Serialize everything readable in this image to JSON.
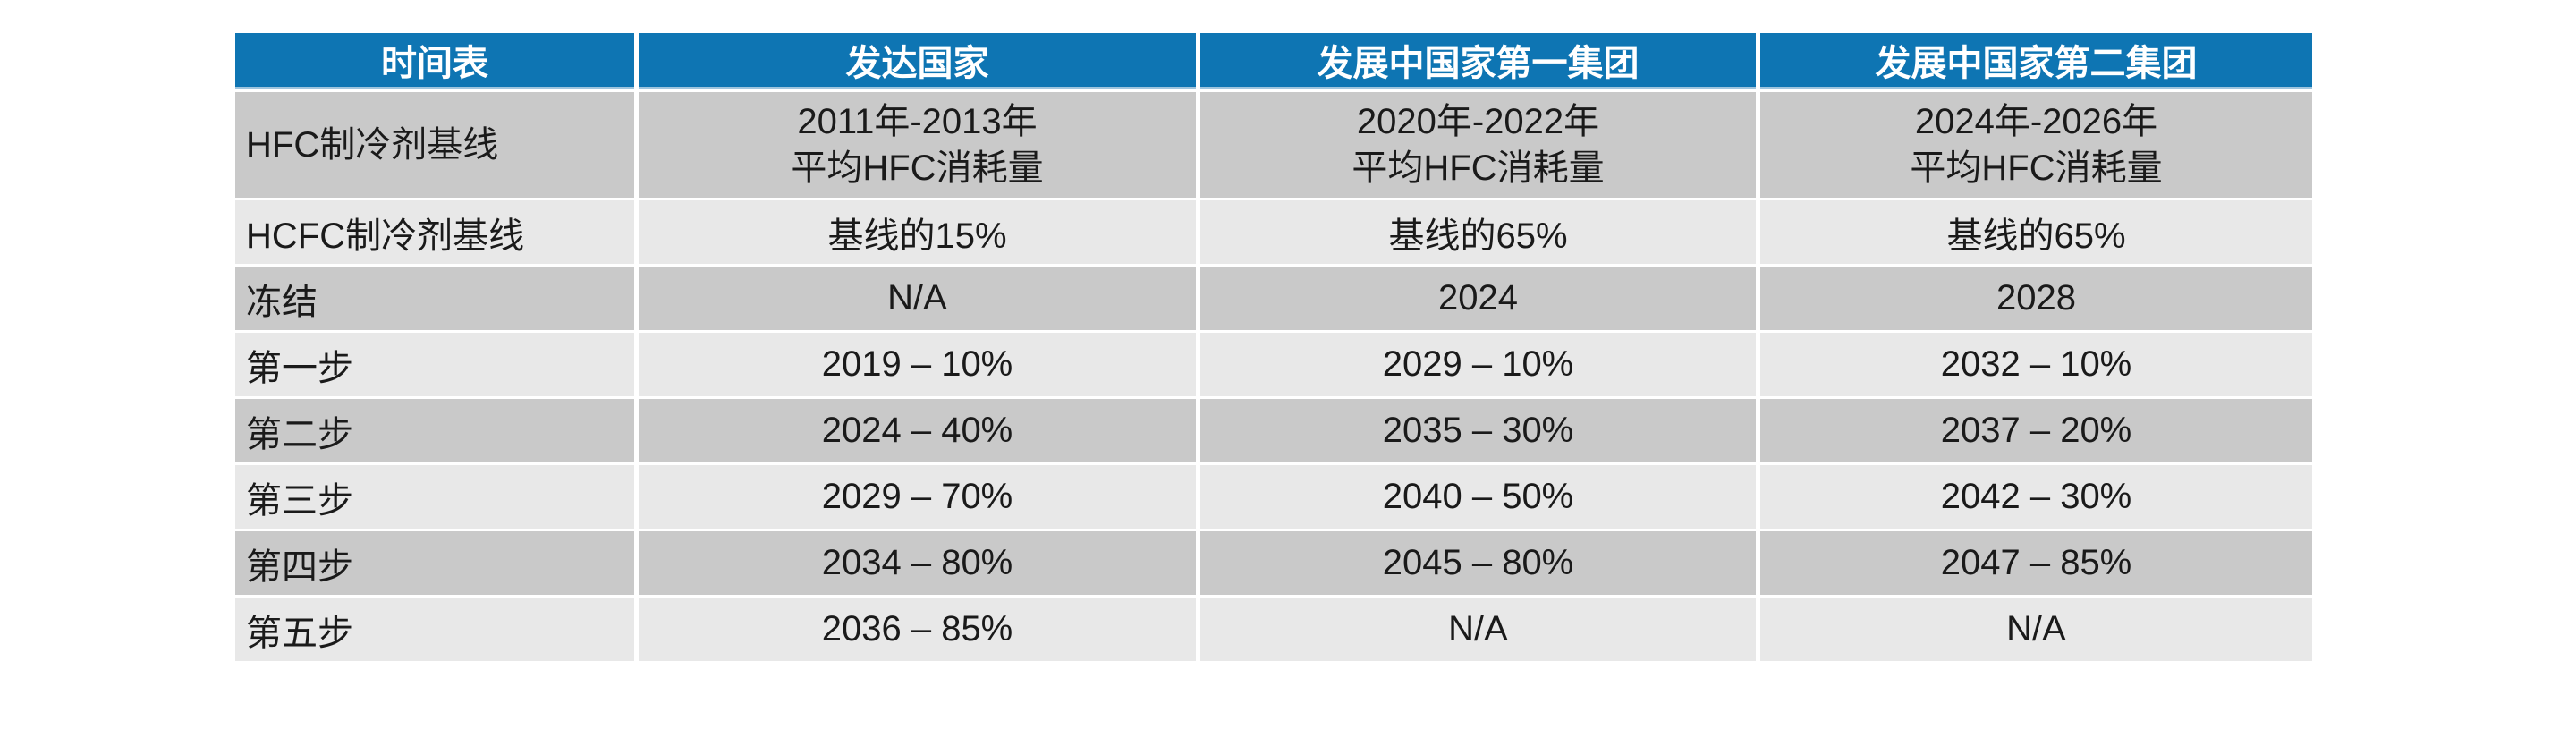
{
  "table": {
    "title_column_header": "时间表",
    "columns": [
      "时间表",
      "发达国家",
      "发展中国家第一集团",
      "发展中国家第二集团"
    ],
    "rows": [
      {
        "label": "HFC制冷剂基线",
        "values": [
          "2011年-2013年\n平均HFC消耗量",
          "2020年-2022年\n平均HFC消耗量",
          "2024年-2026年\n平均HFC消耗量"
        ]
      },
      {
        "label": "HCFC制冷剂基线",
        "values": [
          "基线的15%",
          "基线的65%",
          "基线的65%"
        ]
      },
      {
        "label": "冻结",
        "values": [
          "N/A",
          "2024",
          "2028"
        ]
      },
      {
        "label": "第一步",
        "values": [
          "2019 – 10%",
          "2029 – 10%",
          "2032 – 10%"
        ]
      },
      {
        "label": "第二步",
        "values": [
          "2024 – 40%",
          "2035 – 30%",
          "2037 – 20%"
        ]
      },
      {
        "label": "第三步",
        "values": [
          "2029 – 70%",
          "2040 – 50%",
          "2042 – 30%"
        ]
      },
      {
        "label": "第四步",
        "values": [
          "2034 – 80%",
          "2045 – 80%",
          "2047 – 85%"
        ]
      },
      {
        "label": "第五步",
        "values": [
          "2036 – 85%",
          "N/A",
          "N/A"
        ]
      }
    ],
    "colors": {
      "header_bg": "#0e75b3",
      "header_text": "#ffffff",
      "row_dark": "#c9c9c9",
      "row_light": "#e8e8e8",
      "accent_line": "#9fc5de",
      "text": "#1a1a1a"
    }
  }
}
